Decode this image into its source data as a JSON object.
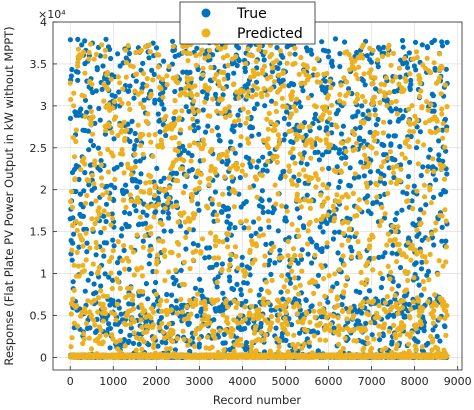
{
  "chart_data": {
    "type": "scatter",
    "title": "",
    "xlabel": "Record number",
    "ylabel": "Response (Flat Plate PV Power Output in kW without MPPT)",
    "y_exponent_label": "×10⁴",
    "y_scale_factor": 10000,
    "xlim": [
      -400,
      9100
    ],
    "ylim": [
      -0.15,
      4.0
    ],
    "x_ticks": [
      0,
      1000,
      2000,
      3000,
      4000,
      5000,
      6000,
      7000,
      8000,
      9000
    ],
    "y_ticks": [
      0,
      0.5,
      1,
      1.5,
      2,
      2.5,
      3,
      3.5,
      4
    ],
    "y_tick_labels": [
      "0",
      "0.5",
      "1",
      "1.5",
      "2",
      "2.5",
      "3",
      "3.5",
      "4"
    ],
    "grid": true,
    "legend_position": "top-center",
    "n_points": 8760,
    "series": [
      {
        "name": "True",
        "color": "#0072BD",
        "y_max": 3.8
      },
      {
        "name": "Predicted",
        "color": "#EDB120",
        "y_max": 3.75
      }
    ]
  }
}
